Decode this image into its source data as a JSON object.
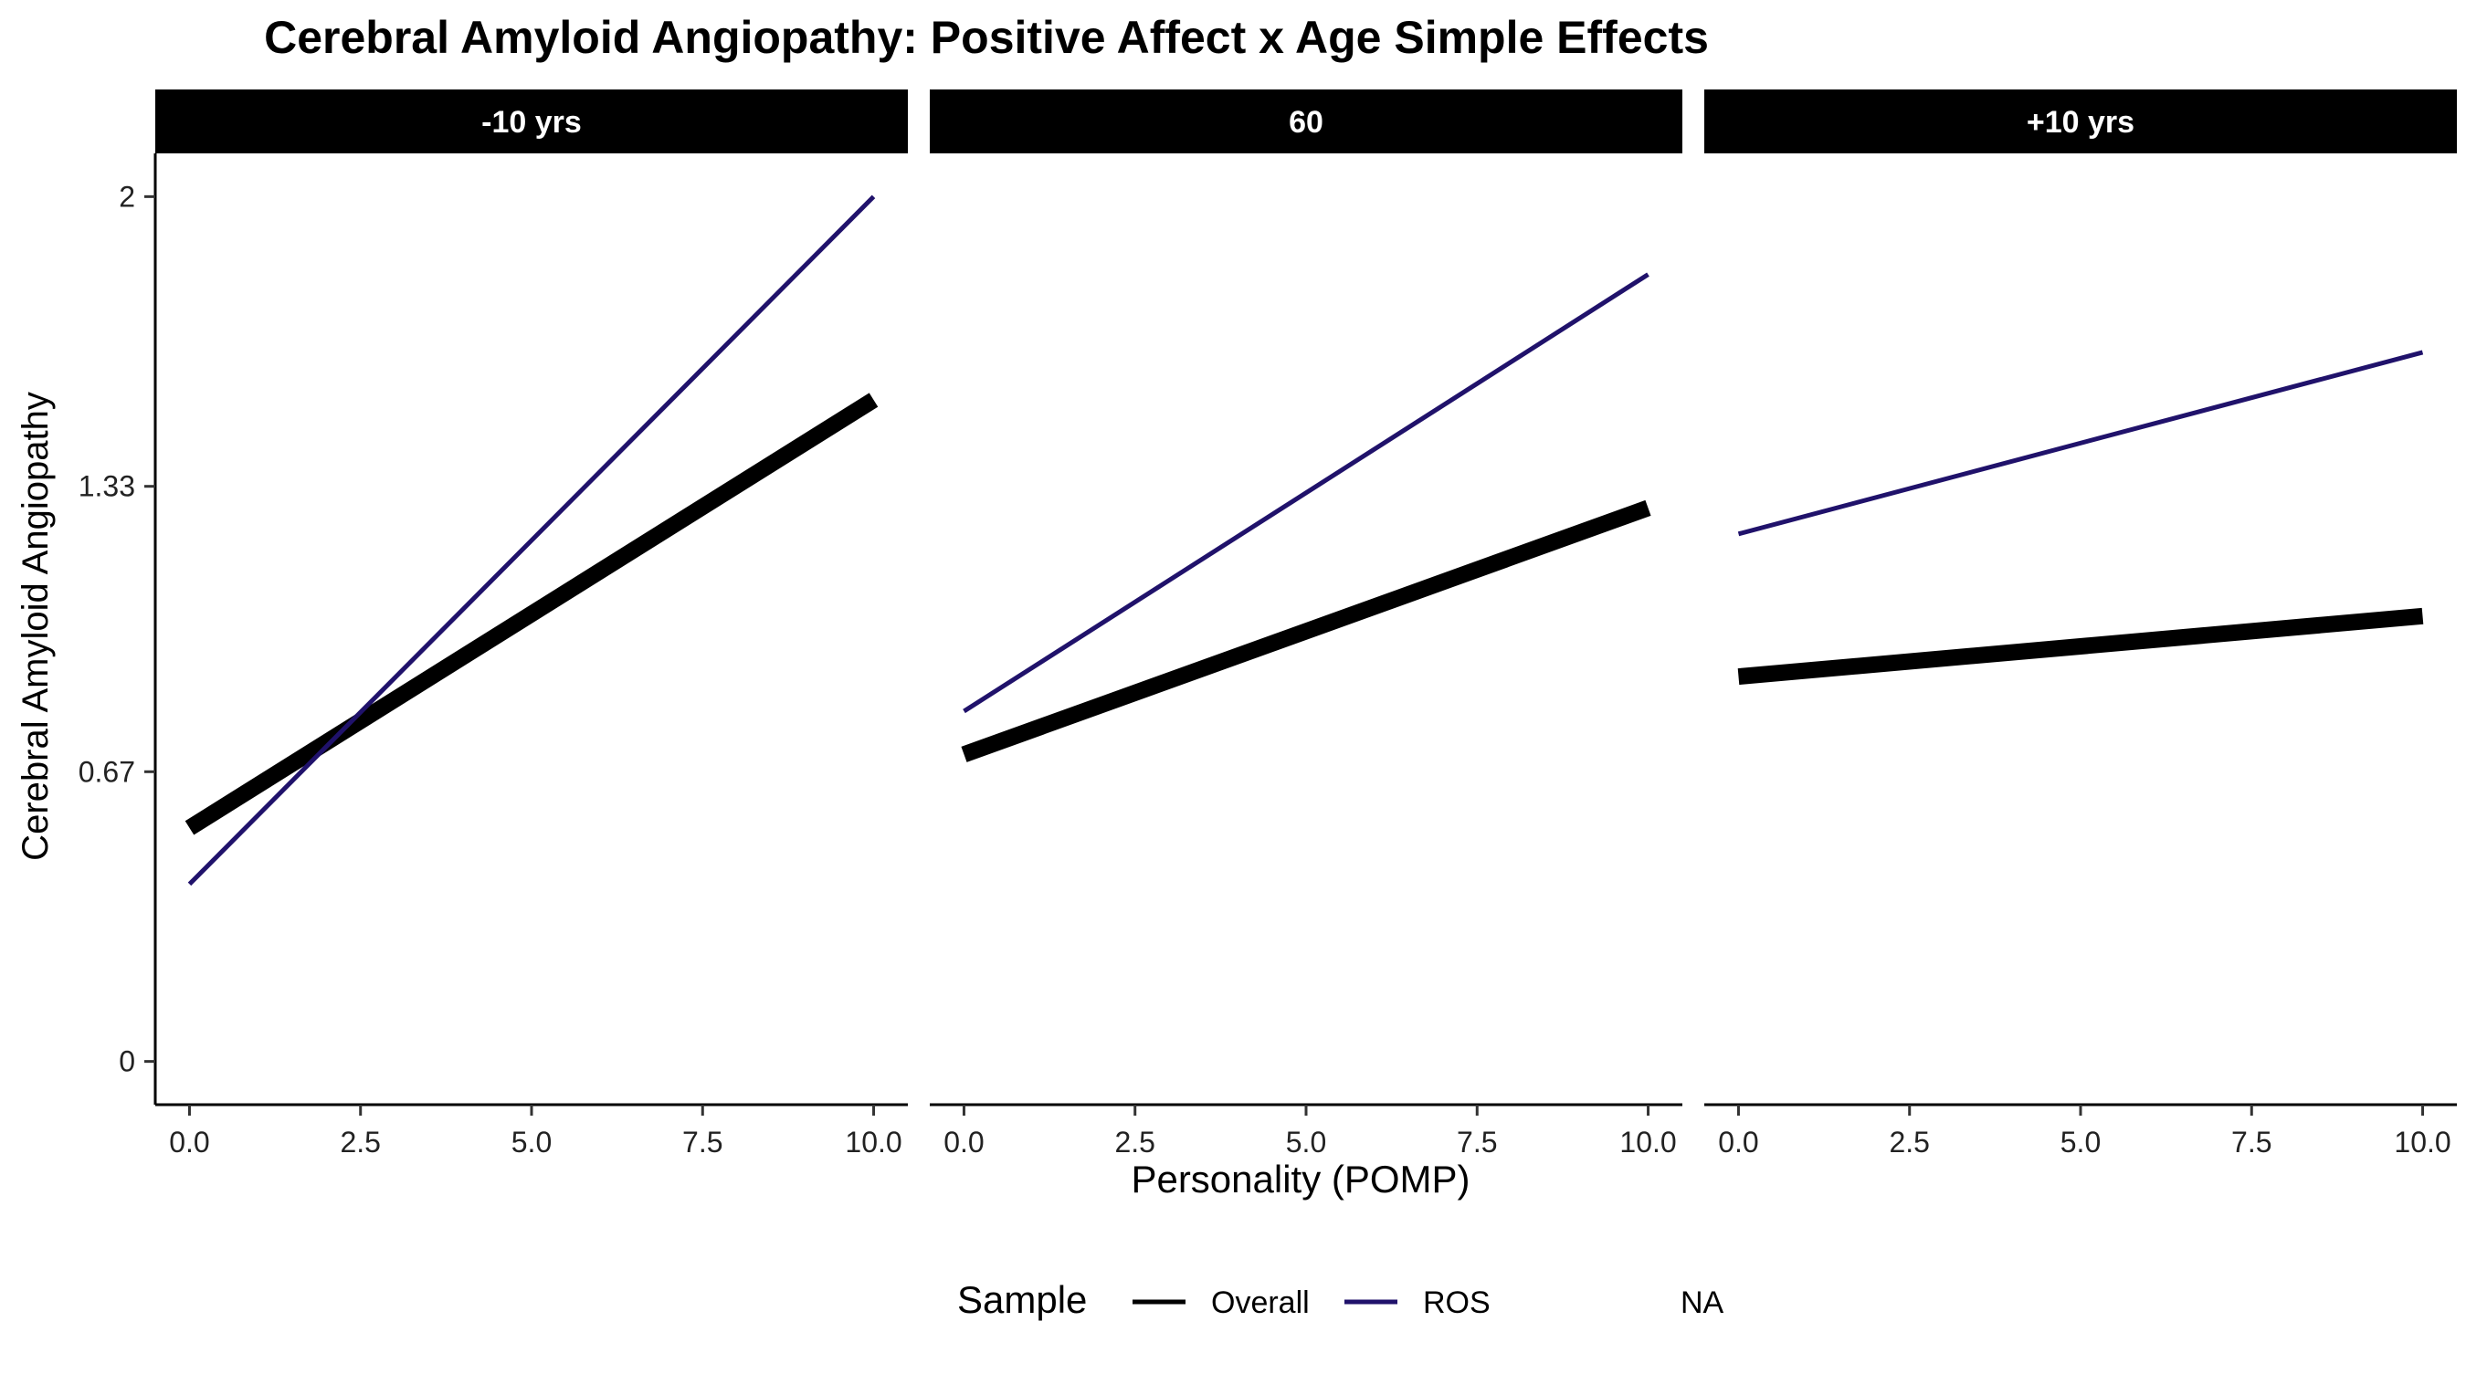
{
  "chart_data": {
    "type": "line",
    "title": "Cerebral Amyloid Angiopathy: Positive Affect x Age Simple Effects",
    "xlabel": "Personality (POMP)",
    "ylabel": "Cerebral Amyloid Angiopathy",
    "xlim": [
      -0.5,
      10.5
    ],
    "ylim": [
      -0.1,
      2.1
    ],
    "x_ticks": [
      0,
      2.5,
      5,
      7.5,
      10
    ],
    "x_tick_labels": [
      "0.0",
      "2.5",
      "5.0",
      "7.5",
      "10.0"
    ],
    "y_ticks": [
      0,
      0.67,
      1.33,
      2
    ],
    "y_tick_labels": [
      "0",
      "0.67",
      "1.33",
      "2"
    ],
    "grid": false,
    "legend": {
      "title": "Sample",
      "position": "bottom",
      "entries": [
        "Overall",
        "ROS",
        "NA"
      ]
    },
    "colors": {
      "Overall": "#000000",
      "ROS": "#20126b",
      "NA": "none"
    },
    "panels": [
      {
        "label": "-10 yrs",
        "series": [
          {
            "name": "Overall",
            "x": [
              0,
              10
            ],
            "y": [
              0.54,
              1.53
            ]
          },
          {
            "name": "ROS",
            "x": [
              0,
              10
            ],
            "y": [
              0.41,
              2.0
            ]
          }
        ]
      },
      {
        "label": "60",
        "series": [
          {
            "name": "Overall",
            "x": [
              0,
              10
            ],
            "y": [
              0.71,
              1.28
            ]
          },
          {
            "name": "ROS",
            "x": [
              0,
              10
            ],
            "y": [
              0.81,
              1.82
            ]
          }
        ]
      },
      {
        "label": "+10 yrs",
        "series": [
          {
            "name": "Overall",
            "x": [
              0,
              10
            ],
            "y": [
              0.89,
              1.03
            ]
          },
          {
            "name": "ROS",
            "x": [
              0,
              10
            ],
            "y": [
              1.22,
              1.64
            ]
          }
        ]
      }
    ]
  }
}
